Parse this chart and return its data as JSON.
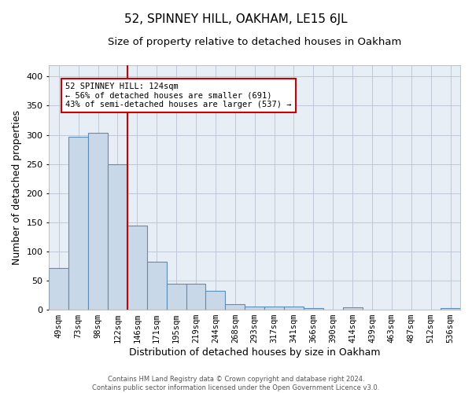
{
  "title": "52, SPINNEY HILL, OAKHAM, LE15 6JL",
  "subtitle": "Size of property relative to detached houses in Oakham",
  "xlabel": "Distribution of detached houses by size in Oakham",
  "ylabel": "Number of detached properties",
  "footer_line1": "Contains HM Land Registry data © Crown copyright and database right 2024.",
  "footer_line2": "Contains public sector information licensed under the Open Government Licence v3.0.",
  "categories": [
    "49sqm",
    "73sqm",
    "98sqm",
    "122sqm",
    "146sqm",
    "171sqm",
    "195sqm",
    "219sqm",
    "244sqm",
    "268sqm",
    "293sqm",
    "317sqm",
    "341sqm",
    "366sqm",
    "390sqm",
    "414sqm",
    "439sqm",
    "463sqm",
    "487sqm",
    "512sqm",
    "536sqm"
  ],
  "values": [
    72,
    297,
    304,
    249,
    144,
    83,
    45,
    44,
    32,
    9,
    6,
    6,
    6,
    3,
    0,
    4,
    0,
    0,
    0,
    0,
    3
  ],
  "bar_color": "#c8d8e8",
  "bar_edge_color": "#5b8db8",
  "bar_edge_width": 0.8,
  "vline_color": "#cc0000",
  "vline_linewidth": 1.5,
  "vline_pos": 3.5,
  "annotation_text": "52 SPINNEY HILL: 124sqm\n← 56% of detached houses are smaller (691)\n43% of semi-detached houses are larger (537) →",
  "annotation_box_color": "white",
  "annotation_box_edge": "#cc0000",
  "ylim": [
    0,
    420
  ],
  "yticks": [
    0,
    50,
    100,
    150,
    200,
    250,
    300,
    350,
    400
  ],
  "grid_color": "#c0c8d8",
  "bg_color": "#e8eef5",
  "title_fontsize": 11,
  "subtitle_fontsize": 9.5,
  "tick_fontsize": 7.5,
  "ylabel_fontsize": 9,
  "xlabel_fontsize": 9,
  "annotation_fontsize": 7.5,
  "footer_fontsize": 6
}
